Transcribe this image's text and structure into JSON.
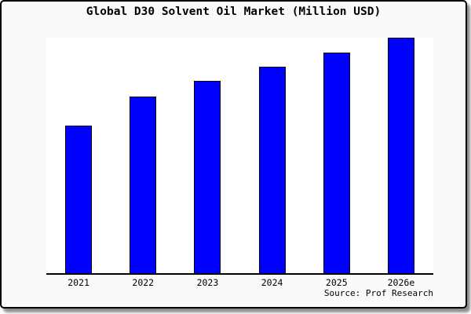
{
  "window": {
    "background_color": "#fafafa",
    "plot_background_color": "#ffffff",
    "border_color": "#000000"
  },
  "chart_data": {
    "type": "bar",
    "title": "Global D30 Solvent Oil Market (Million USD)",
    "xlabel": "",
    "ylabel": "",
    "categories": [
      "2021",
      "2022",
      "2023",
      "2024",
      "2025",
      "2026e"
    ],
    "values_relative_pct": [
      62.2,
      74.8,
      81.2,
      87.5,
      93.3,
      99.7
    ],
    "value_axis_note": "no y-axis shown; values are estimated bar heights as % of plot height",
    "ylim": [
      0,
      100
    ],
    "gridlines": false,
    "y_axis_visible": false,
    "legend": null,
    "bar_color": "#0000fe",
    "bar_edge_color": "#000000"
  },
  "footer": {
    "source_label": "Source: Prof Research"
  }
}
